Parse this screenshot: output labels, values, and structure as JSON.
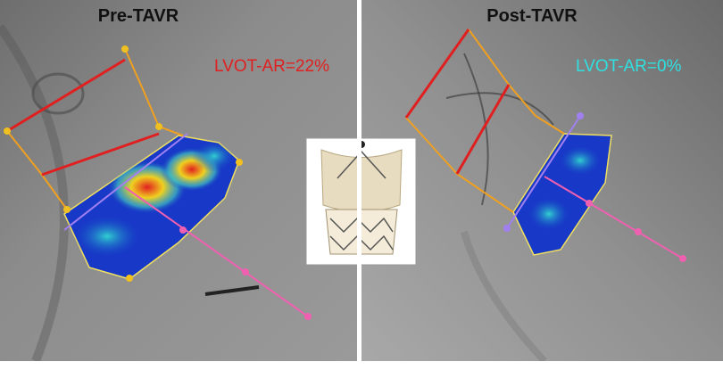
{
  "panels": [
    {
      "title": "Pre-TAVR",
      "annotation": "LVOT-AR=22%"
    },
    {
      "title": "Post-TAVR",
      "annotation": "LVOT-AR=0%"
    }
  ]
}
